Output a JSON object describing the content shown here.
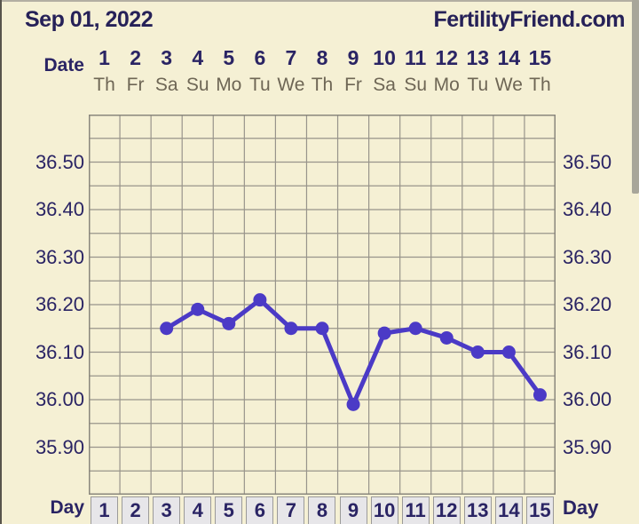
{
  "header": {
    "date_title": "Sep 01, 2022",
    "brand": "FertilityFriend.com"
  },
  "axis": {
    "date_label": "Date",
    "day_label_left": "Day",
    "day_label_right": "Day",
    "dates": [
      "1",
      "2",
      "3",
      "4",
      "5",
      "6",
      "7",
      "8",
      "9",
      "10",
      "11",
      "12",
      "13",
      "14",
      "15"
    ],
    "weekdays": [
      "Th",
      "Fr",
      "Sa",
      "Su",
      "Mo",
      "Tu",
      "We",
      "Th",
      "Fr",
      "Sa",
      "Su",
      "Mo",
      "Tu",
      "We",
      "Th"
    ],
    "days": [
      "1",
      "2",
      "3",
      "4",
      "5",
      "6",
      "7",
      "8",
      "9",
      "10",
      "11",
      "12",
      "13",
      "14",
      "15"
    ],
    "y_ticks": [
      "36.50",
      "36.40",
      "36.30",
      "36.20",
      "36.10",
      "36.00",
      "35.90"
    ]
  },
  "chart_data": {
    "type": "line",
    "x": [
      3,
      4,
      5,
      6,
      7,
      8,
      9,
      10,
      11,
      12,
      13,
      14,
      15
    ],
    "values": [
      36.15,
      36.19,
      36.16,
      36.21,
      36.15,
      36.15,
      35.99,
      36.14,
      36.15,
      36.13,
      36.1,
      36.1,
      36.01
    ],
    "x_range": [
      1,
      15
    ],
    "ylim": [
      35.8,
      36.6
    ],
    "grid_step": 0.05,
    "y_tick_values": [
      36.5,
      36.4,
      36.3,
      36.2,
      36.1,
      36.0,
      35.9
    ],
    "xlabel_top": "Date",
    "xlabel_bottom": "Day",
    "legend": "none",
    "grid": "on",
    "line_color": "#4b3ac6",
    "marker": "circle"
  },
  "colors": {
    "background": "#f5f0d4",
    "text_navy": "#2a2464",
    "weekday_taupe": "#6e6655",
    "gridline": "#98948b",
    "chart_border": "#8a877d",
    "line": "#4b3ac6",
    "day_cell_bg": "#e7e6e9",
    "scrollbar": "#a8a69a"
  }
}
